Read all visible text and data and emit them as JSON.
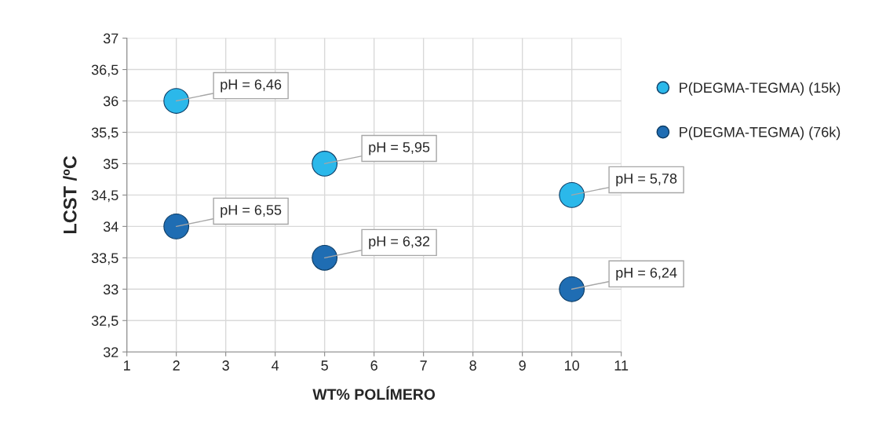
{
  "chart_data": {
    "type": "scatter",
    "xlabel": "WT% POLÍMERO",
    "ylabel": "LCST /ºC",
    "x": [
      2,
      5,
      10
    ],
    "series": [
      {
        "name": "P(DEGMA-TEGMA) (15k)",
        "color": "#2bb8ea",
        "values": [
          36,
          35,
          34.5
        ]
      },
      {
        "name": "P(DEGMA-TEGMA) (76k)",
        "color": "#1f6db3",
        "values": [
          34,
          33.5,
          33
        ]
      }
    ],
    "annotations": [
      {
        "text": "pH = 6,46",
        "x": 2,
        "y": 36
      },
      {
        "text": "pH = 5,95",
        "x": 5,
        "y": 35
      },
      {
        "text": "pH = 5,78",
        "x": 10,
        "y": 34.5
      },
      {
        "text": "pH = 6,55",
        "x": 2,
        "y": 34
      },
      {
        "text": "pH = 6,32",
        "x": 5,
        "y": 33.5
      },
      {
        "text": "pH = 6,24",
        "x": 10,
        "y": 33
      }
    ],
    "xlim": [
      1,
      11
    ],
    "xticks": [
      1,
      2,
      3,
      4,
      5,
      6,
      7,
      8,
      9,
      10,
      11
    ],
    "ylim": [
      32,
      37
    ],
    "yticks": [
      32,
      {
        "value": 32.5,
        "label": "32,5"
      },
      33,
      {
        "value": 33.5,
        "label": "33,5"
      },
      34,
      {
        "value": 34.5,
        "label": "34,5"
      },
      35,
      {
        "value": 35.5,
        "label": "35,5"
      },
      36,
      {
        "value": 36.5,
        "label": "36,5"
      },
      37
    ],
    "grid": true,
    "legend": "right",
    "marker": "circle"
  }
}
